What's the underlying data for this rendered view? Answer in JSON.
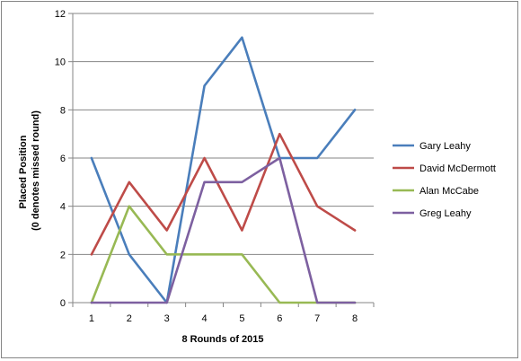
{
  "chart_data": {
    "type": "line",
    "title": "",
    "xlabel": "8 Rounds of 2015",
    "ylabel_lines": [
      "Placed Position",
      "(0 denotes missed round)"
    ],
    "x": [
      1,
      2,
      3,
      4,
      5,
      6,
      7,
      8
    ],
    "ylim": [
      0,
      12
    ],
    "yticks": [
      0,
      2,
      4,
      6,
      8,
      10,
      12
    ],
    "grid": true,
    "legend_position": "right",
    "series": [
      {
        "name": "Gary Leahy",
        "color": "#4a7ebb",
        "values": [
          6,
          2,
          0,
          9,
          11,
          6,
          6,
          8
        ]
      },
      {
        "name": "David McDermott",
        "color": "#be4b48",
        "values": [
          2,
          5,
          3,
          6,
          3,
          7,
          4,
          3
        ]
      },
      {
        "name": "Alan McCabe",
        "color": "#98b954",
        "values": [
          0,
          4,
          2,
          2,
          2,
          0,
          0,
          0
        ]
      },
      {
        "name": "Greg Leahy",
        "color": "#7d60a0",
        "values": [
          0,
          0,
          0,
          5,
          5,
          6,
          0,
          0
        ]
      }
    ]
  }
}
